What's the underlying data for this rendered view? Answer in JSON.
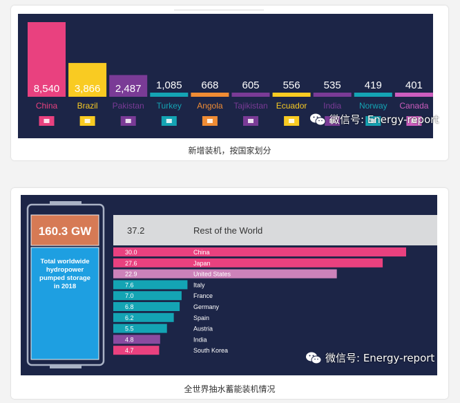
{
  "card1": {
    "caption": "新增装机，按国家划分",
    "watermark": "微信号: Energy-report",
    "chart_data": {
      "type": "bar",
      "categories": [
        "China",
        "Brazil",
        "Pakistan",
        "Turkey",
        "Angola",
        "Tajikistan",
        "Ecuador",
        "India",
        "Norway",
        "Canada"
      ],
      "values": [
        8540,
        3866,
        2487,
        1085,
        668,
        605,
        556,
        535,
        419,
        401
      ],
      "value_labels": [
        "8,540",
        "3,866",
        "2,487",
        "1,085",
        "668",
        "605",
        "556",
        "535",
        "419",
        "401"
      ],
      "colors": [
        "#e9417f",
        "#f9cb22",
        "#7a3b96",
        "#14a4b4",
        "#f08c34",
        "#7a3b96",
        "#f9cb22",
        "#7a3b96",
        "#14a4b4",
        "#cd5dbe"
      ],
      "label_colors": [
        "#e9417f",
        "#f9cb22",
        "#7a3b96",
        "#14a4b4",
        "#f08c34",
        "#7a3b96",
        "#f9cb22",
        "#7a3b96",
        "#14a4b4",
        "#cd5dbe"
      ],
      "flags": [
        "china-flag",
        "brazil-flag",
        "pakistan-flag",
        "turkey-flag",
        "angola-flag",
        "tajikistan-flag",
        "ecuador-flag",
        "india-flag",
        "norway-flag",
        "canada-flag"
      ],
      "ylim": [
        0,
        8540
      ]
    }
  },
  "card2": {
    "caption": "全世界抽水蓄能装机情况",
    "watermark": "微信号: Energy-report",
    "total_value": "160.3 GW",
    "total_label": "Total worldwide hydropower pumped storage in 2018",
    "chart_data": {
      "type": "bar",
      "orientation": "horizontal",
      "categories": [
        "Rest of the World",
        "China",
        "Japan",
        "United States",
        "Italy",
        "France",
        "Germany",
        "Spain",
        "Austria",
        "India",
        "South Korea"
      ],
      "values": [
        37.2,
        30.0,
        27.6,
        22.9,
        7.6,
        7.0,
        6.8,
        6.2,
        5.5,
        4.8,
        4.7
      ],
      "value_labels": [
        "37.2",
        "30.0",
        "27.6",
        "22.9",
        "7.6",
        "7.0",
        "6.8",
        "6.2",
        "5.5",
        "4.8",
        "4.7"
      ],
      "colors": [
        "#d9dadc",
        "#e9417f",
        "#e9417f",
        "#cc82ba",
        "#14a4b4",
        "#14a4b4",
        "#14a4b4",
        "#14a4b4",
        "#14a4b4",
        "#8a4ba0",
        "#e9417f"
      ],
      "xlim": [
        0,
        37.2
      ]
    }
  }
}
